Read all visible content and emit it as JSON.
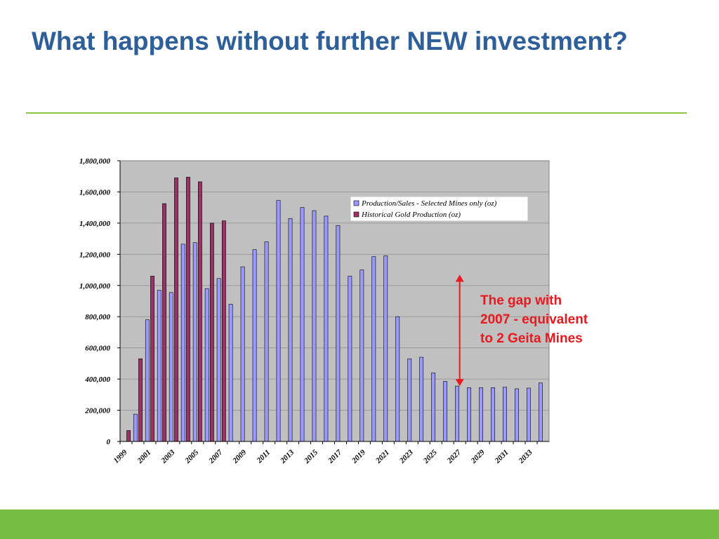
{
  "slide": {
    "title": "What happens without further NEW investment?",
    "annotation_lines": [
      "The gap with",
      "2007 - equivalent",
      "to 2 Geita Mines"
    ]
  },
  "colors": {
    "title": "#2e5f9a",
    "rule": "#8cc63f",
    "bottom_bar": "#76be43",
    "plot_background": "#c0c0c0",
    "annotation": "#e8191f",
    "series_production": "#9999ff",
    "series_historical": "#993366"
  },
  "chart_data": {
    "type": "bar",
    "categories": [
      "1999",
      "2000",
      "2001",
      "2002",
      "2003",
      "2004",
      "2005",
      "2006",
      "2007",
      "2008",
      "2009",
      "2010",
      "2011",
      "2012",
      "2013",
      "2014",
      "2015",
      "2016",
      "2017",
      "2018",
      "2019",
      "2020",
      "2021",
      "2022",
      "2023",
      "2024",
      "2025",
      "2026",
      "2027",
      "2028",
      "2029",
      "2030",
      "2031",
      "2032",
      "2033",
      "2034"
    ],
    "tick_labels": [
      "1999",
      "2001",
      "2003",
      "2005",
      "2007",
      "2009",
      "2011",
      "2013",
      "2015",
      "2017",
      "2019",
      "2021",
      "2023",
      "2025",
      "2027",
      "2029",
      "2031",
      "2033"
    ],
    "series": [
      {
        "name": "Production/Sales - Selected Mines only (oz)",
        "color": "#9999ff",
        "values": [
          null,
          175000,
          780000,
          970000,
          955000,
          1265000,
          1275000,
          980000,
          1045000,
          880000,
          1120000,
          1230000,
          1280000,
          1545000,
          1430000,
          1500000,
          1480000,
          1445000,
          1385000,
          1060000,
          1100000,
          1185000,
          1190000,
          800000,
          530000,
          540000,
          440000,
          385000,
          355000,
          345000,
          345000,
          345000,
          348000,
          338000,
          342000,
          375000
        ]
      },
      {
        "name": "Historical Gold Production (oz)",
        "color": "#993366",
        "values": [
          70000,
          530000,
          1060000,
          1525000,
          1690000,
          1695000,
          1665000,
          1400000,
          1415000,
          null,
          null,
          null,
          null,
          null,
          null,
          null,
          null,
          null,
          null,
          null,
          null,
          null,
          null,
          null,
          null,
          null,
          null,
          null,
          null,
          null,
          null,
          null,
          null,
          null,
          null,
          null
        ]
      }
    ],
    "y_ticks": [
      "0",
      "200,000",
      "400,000",
      "600,000",
      "800,000",
      "1,000,000",
      "1,200,000",
      "1,400,000",
      "1,600,000",
      "1,800,000"
    ],
    "ylim": [
      0,
      1800000
    ],
    "grid": true,
    "legend_position": "top-right",
    "gap_arrow": {
      "from": 400000,
      "to": 1060000,
      "category": "2027"
    }
  }
}
